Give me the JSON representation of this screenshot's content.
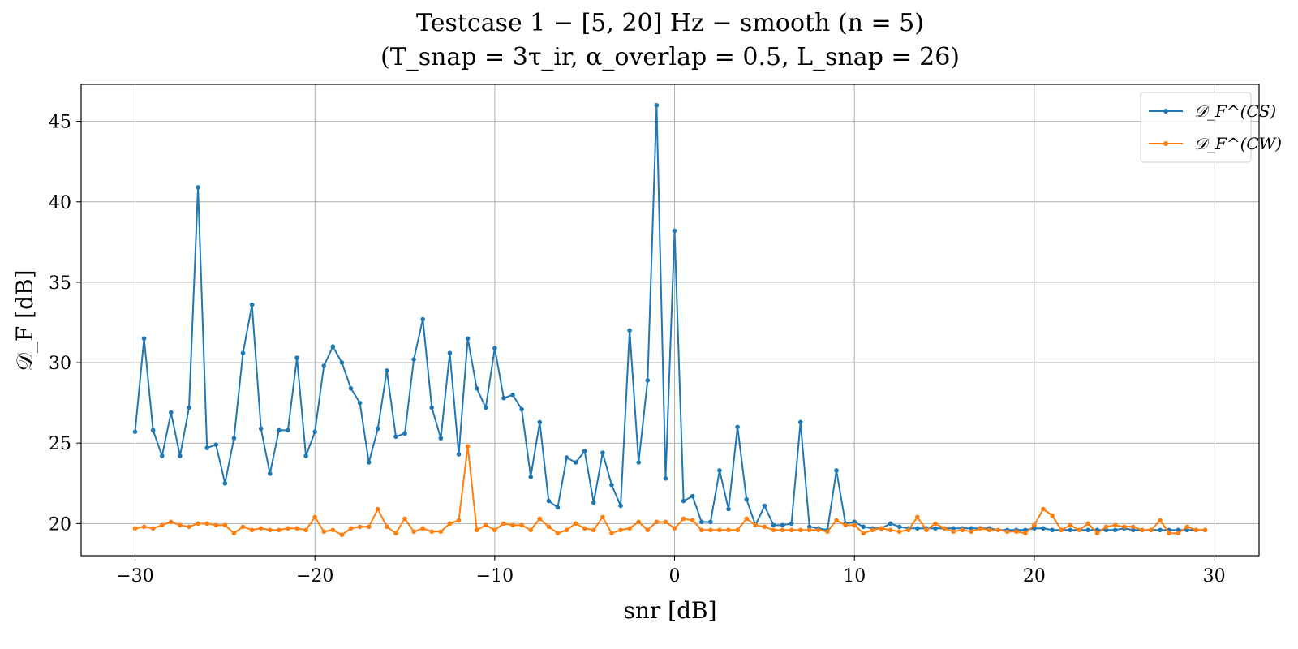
{
  "chart_data": {
    "type": "line",
    "title": "Testcase 1 − [5, 20] Hz − smooth (n = 5)",
    "subtitle": "(T_snap = 3τ_ir,   α_overlap = 0.5,   L_snap = 26)",
    "xlabel": "snr [dB]",
    "ylabel": "𝒟_F [dB]",
    "xlim": [
      -33,
      32.5
    ],
    "ylim": [
      18,
      47.3
    ],
    "xticks": [
      -30,
      -20,
      -10,
      0,
      10,
      20,
      30
    ],
    "xtick_labels": [
      "−30",
      "−20",
      "−10",
      "0",
      "10",
      "20",
      "30"
    ],
    "yticks": [
      20,
      25,
      30,
      35,
      40,
      45
    ],
    "ytick_labels": [
      "20",
      "25",
      "30",
      "35",
      "40",
      "45"
    ],
    "grid": true,
    "legend_position": "top-right",
    "x": [
      -30.0,
      -29.5,
      -29.0,
      -28.5,
      -28.0,
      -27.5,
      -27.0,
      -26.5,
      -26.0,
      -25.5,
      -25.0,
      -24.5,
      -24.0,
      -23.5,
      -23.0,
      -22.5,
      -22.0,
      -21.5,
      -21.0,
      -20.5,
      -20.0,
      -19.5,
      -19.0,
      -18.5,
      -18.0,
      -17.5,
      -17.0,
      -16.5,
      -16.0,
      -15.5,
      -15.0,
      -14.5,
      -14.0,
      -13.5,
      -13.0,
      -12.5,
      -12.0,
      -11.5,
      -11.0,
      -10.5,
      -10.0,
      -9.5,
      -9.0,
      -8.5,
      -8.0,
      -7.5,
      -7.0,
      -6.5,
      -6.0,
      -5.5,
      -5.0,
      -4.5,
      -4.0,
      -3.5,
      -3.0,
      -2.5,
      -2.0,
      -1.5,
      -1.0,
      -0.5,
      0.0,
      0.5,
      1.0,
      1.5,
      2.0,
      2.5,
      3.0,
      3.5,
      4.0,
      4.5,
      5.0,
      5.5,
      6.0,
      6.5,
      7.0,
      7.5,
      8.0,
      8.5,
      9.0,
      9.5,
      10.0,
      10.5,
      11.0,
      11.5,
      12.0,
      12.5,
      13.0,
      13.5,
      14.0,
      14.5,
      15.0,
      15.5,
      16.0,
      16.5,
      17.0,
      17.5,
      18.0,
      18.5,
      19.0,
      19.5,
      20.0,
      20.5,
      21.0,
      21.5,
      22.0,
      22.5,
      23.0,
      23.5,
      24.0,
      24.5,
      25.0,
      25.5,
      26.0,
      26.5,
      27.0,
      27.5,
      28.0,
      28.5,
      29.0,
      29.5
    ],
    "series": [
      {
        "name": "𝒟_F^(CS)",
        "color": "#1f77b4",
        "values": [
          25.7,
          31.5,
          25.8,
          24.2,
          26.9,
          24.2,
          27.2,
          40.9,
          24.7,
          24.9,
          22.5,
          25.3,
          30.6,
          33.6,
          25.9,
          23.1,
          25.8,
          25.8,
          30.3,
          24.2,
          25.7,
          29.8,
          31.0,
          30.0,
          28.4,
          27.5,
          23.8,
          25.9,
          29.5,
          25.4,
          25.6,
          30.2,
          32.7,
          27.2,
          25.3,
          30.6,
          24.3,
          31.5,
          28.4,
          27.2,
          30.9,
          27.8,
          28.0,
          27.1,
          22.9,
          26.3,
          21.4,
          21.0,
          24.1,
          23.8,
          24.5,
          21.3,
          24.4,
          22.4,
          21.1,
          32.0,
          23.8,
          28.9,
          46.0,
          22.8,
          38.2,
          21.4,
          21.7,
          20.1,
          20.1,
          23.3,
          20.9,
          26.0,
          21.5,
          19.9,
          21.1,
          19.9,
          19.9,
          20.0,
          26.3,
          19.8,
          19.7,
          19.6,
          23.3,
          20.0,
          20.1,
          19.8,
          19.7,
          19.7,
          20.0,
          19.8,
          19.7,
          19.7,
          19.7,
          19.7,
          19.7,
          19.7,
          19.7,
          19.7,
          19.7,
          19.7,
          19.6,
          19.6,
          19.6,
          19.6,
          19.7,
          19.7,
          19.6,
          19.6,
          19.6,
          19.6,
          19.6,
          19.6,
          19.6,
          19.6,
          19.7,
          19.6,
          19.6,
          19.6,
          19.6,
          19.6,
          19.6,
          19.6,
          19.6,
          19.6
        ]
      },
      {
        "name": "𝒟_F^(CW)",
        "color": "#ff7f0e",
        "values": [
          19.7,
          19.8,
          19.7,
          19.9,
          20.1,
          19.9,
          19.8,
          20.0,
          20.0,
          19.9,
          19.9,
          19.4,
          19.8,
          19.6,
          19.7,
          19.6,
          19.6,
          19.7,
          19.7,
          19.6,
          20.4,
          19.5,
          19.6,
          19.3,
          19.7,
          19.8,
          19.8,
          20.9,
          19.8,
          19.4,
          20.3,
          19.5,
          19.7,
          19.5,
          19.5,
          20.0,
          20.2,
          24.8,
          19.6,
          19.9,
          19.6,
          20.0,
          19.9,
          19.9,
          19.6,
          20.3,
          19.8,
          19.4,
          19.6,
          20.0,
          19.7,
          19.6,
          20.4,
          19.4,
          19.6,
          19.7,
          20.1,
          19.6,
          20.1,
          20.1,
          19.7,
          20.3,
          20.2,
          19.6,
          19.6,
          19.6,
          19.6,
          19.6,
          20.3,
          19.9,
          19.8,
          19.6,
          19.6,
          19.6,
          19.6,
          19.6,
          19.6,
          19.5,
          20.2,
          19.9,
          19.9,
          19.4,
          19.6,
          19.7,
          19.6,
          19.5,
          19.6,
          20.4,
          19.6,
          20.0,
          19.7,
          19.5,
          19.6,
          19.5,
          19.7,
          19.6,
          19.6,
          19.5,
          19.5,
          19.4,
          19.9,
          20.9,
          20.5,
          19.6,
          19.9,
          19.6,
          20.0,
          19.4,
          19.8,
          19.9,
          19.8,
          19.8,
          19.6,
          19.6,
          20.2,
          19.4,
          19.4,
          19.8,
          19.6,
          19.6
        ]
      }
    ]
  }
}
